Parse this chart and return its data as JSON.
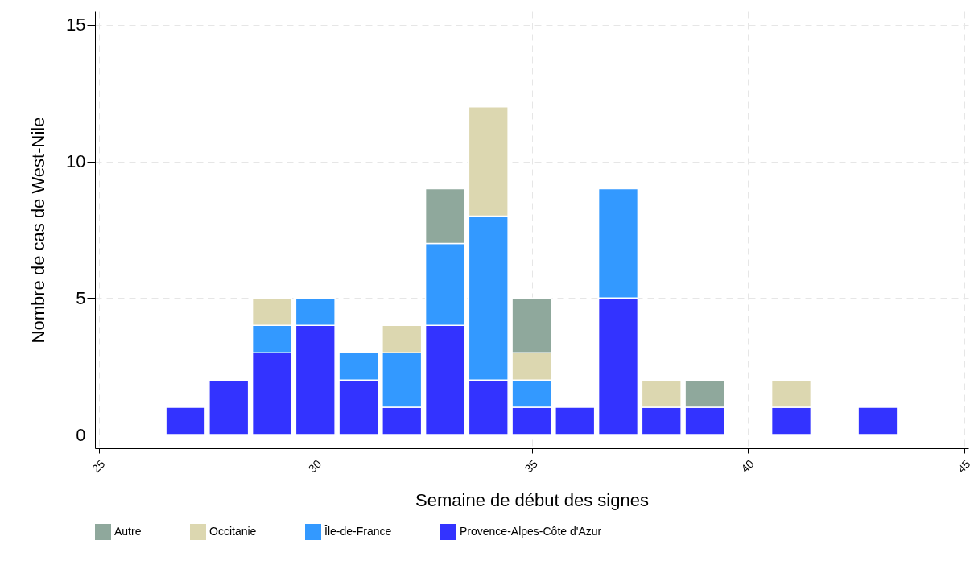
{
  "chart_data": {
    "type": "bar",
    "stacked": true,
    "xlabel": "Semaine de début des signes",
    "ylabel": "Nombre de cas de West-Nile",
    "x": [
      27,
      28,
      29,
      30,
      31,
      32,
      33,
      34,
      35,
      36,
      37,
      38,
      39,
      40,
      41,
      42,
      43
    ],
    "series": [
      {
        "name": "Provence-Alpes-Côte d'Azur",
        "color": "#3333ff",
        "values": [
          1,
          2,
          3,
          4,
          2,
          1,
          4,
          2,
          1,
          1,
          5,
          1,
          1,
          null,
          1,
          null,
          1
        ]
      },
      {
        "name": "Île-de-France",
        "color": "#3399ff",
        "values": [
          null,
          null,
          1,
          1,
          1,
          2,
          3,
          6,
          1,
          null,
          4,
          null,
          null,
          null,
          null,
          null,
          null
        ]
      },
      {
        "name": "Occitanie",
        "color": "#dcd7b0",
        "values": [
          null,
          null,
          1,
          null,
          null,
          1,
          null,
          4,
          1,
          null,
          null,
          1,
          null,
          null,
          1,
          null,
          null
        ]
      },
      {
        "name": "Autre",
        "color": "#8fa89c",
        "values": [
          null,
          null,
          null,
          null,
          null,
          null,
          2,
          null,
          2,
          null,
          null,
          null,
          1,
          null,
          null,
          null,
          null
        ]
      }
    ],
    "xlim": [
      25,
      45
    ],
    "xticks": [
      25,
      30,
      35,
      40,
      45
    ],
    "ylim": [
      -0.5,
      15.5
    ],
    "yticks": [
      0,
      5,
      10,
      15
    ],
    "grid": true,
    "legend": "bottom"
  }
}
